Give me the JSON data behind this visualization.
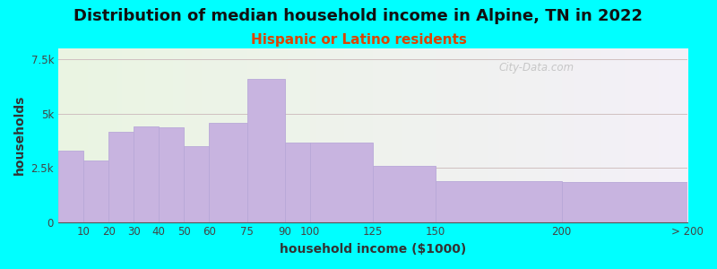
{
  "title": "Distribution of median household income in Alpine, TN in 2022",
  "subtitle": "Hispanic or Latino residents",
  "xlabel": "household income ($1000)",
  "ylabel": "households",
  "background_color": "#00FFFF",
  "bar_color": "#c8b4e0",
  "bar_edge_color": "#b8a8d8",
  "categories": [
    "10",
    "20",
    "30",
    "40",
    "50",
    "60",
    "75",
    "90",
    "100",
    "125",
    "150",
    "200",
    "> 200"
  ],
  "left_edges": [
    0,
    10,
    20,
    30,
    40,
    50,
    60,
    75,
    90,
    100,
    125,
    150,
    200
  ],
  "right_edges": [
    10,
    20,
    30,
    40,
    50,
    60,
    75,
    90,
    100,
    125,
    150,
    200,
    250
  ],
  "values": [
    3300,
    2850,
    4150,
    4400,
    4350,
    3500,
    4550,
    6600,
    3650,
    3650,
    2600,
    1900,
    1850
  ],
  "ylim": [
    0,
    8000
  ],
  "yticks": [
    0,
    2500,
    5000,
    7500
  ],
  "ytick_labels": [
    "0",
    "2.5k",
    "5k",
    "7.5k"
  ],
  "xlim": [
    0,
    250
  ],
  "xtick_positions": [
    10,
    20,
    30,
    40,
    50,
    60,
    75,
    90,
    100,
    125,
    150,
    200,
    250
  ],
  "xtick_labels": [
    "10",
    "20",
    "30",
    "40",
    "50",
    "60",
    "75",
    "90",
    "100",
    "125",
    "150",
    "200",
    "> 200"
  ],
  "title_fontsize": 13,
  "subtitle_fontsize": 11,
  "subtitle_color": "#dd4400",
  "axis_label_fontsize": 10,
  "tick_fontsize": 8.5,
  "watermark_text": "City-Data.com",
  "grid_color": "#d0c0c0",
  "plot_bg_left_color": "#eaf5e2",
  "plot_bg_right_color": "#f4f0f8"
}
